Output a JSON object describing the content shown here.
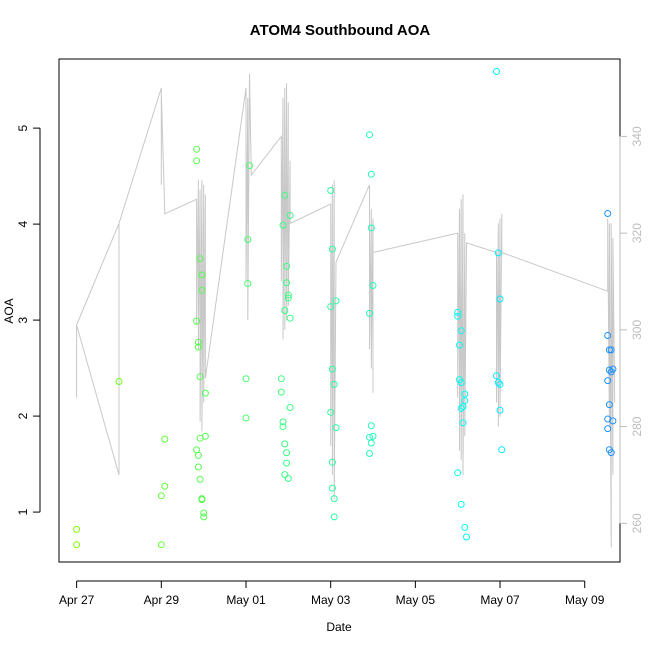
{
  "chart_data": {
    "type": "scatter",
    "title": "ATOM4 Southbound AOA",
    "xlabel": "Date",
    "ylabel": "AOA",
    "x_ticks": [
      "Apr 27",
      "Apr 29",
      "May 01",
      "May 03",
      "May 05",
      "May 07",
      "May 09"
    ],
    "y_ticks": [
      1,
      2,
      3,
      4,
      5
    ],
    "y2_ticks": [
      260,
      280,
      300,
      320,
      340
    ],
    "xlim": [
      "2016-04-26T14:00",
      "2016-05-09T20:00"
    ],
    "ylim": [
      0.48,
      5.72
    ],
    "y2lim": [
      252,
      356
    ],
    "grid": false,
    "point_color_gradient": [
      "#7CFC00",
      "#00FFFF",
      "#1E90FF"
    ],
    "line_color": "#c8c8c8",
    "series": [
      {
        "values": [
          {
            "x": "2016-04-27T00:00",
            "y": 0.66
          },
          {
            "x": "2016-04-27T00:00",
            "y": 0.82
          },
          {
            "x": "2016-04-28T00:00",
            "y": 2.36
          },
          {
            "x": "2016-04-29T00:00",
            "y": 0.66
          },
          {
            "x": "2016-04-29T00:00",
            "y": 1.17
          },
          {
            "x": "2016-04-29T02:00",
            "y": 1.27
          },
          {
            "x": "2016-04-29T02:00",
            "y": 1.76
          },
          {
            "x": "2016-04-29T20:00",
            "y": 1.65
          },
          {
            "x": "2016-04-29T20:00",
            "y": 4.78
          },
          {
            "x": "2016-04-29T20:00",
            "y": 4.66
          },
          {
            "x": "2016-04-29T20:00",
            "y": 2.99
          },
          {
            "x": "2016-04-29T21:00",
            "y": 2.77
          },
          {
            "x": "2016-04-29T21:00",
            "y": 2.72
          },
          {
            "x": "2016-04-29T21:00",
            "y": 1.47
          },
          {
            "x": "2016-04-29T21:00",
            "y": 1.59
          },
          {
            "x": "2016-04-29T22:00",
            "y": 1.34
          },
          {
            "x": "2016-04-29T22:00",
            "y": 3.64
          },
          {
            "x": "2016-04-29T22:00",
            "y": 2.41
          },
          {
            "x": "2016-04-29T22:00",
            "y": 1.77
          },
          {
            "x": "2016-04-29T23:00",
            "y": 3.47
          },
          {
            "x": "2016-04-29T23:00",
            "y": 3.31
          },
          {
            "x": "2016-04-29T23:00",
            "y": 1.13
          },
          {
            "x": "2016-04-29T23:00",
            "y": 1.14
          },
          {
            "x": "2016-04-30T00:00",
            "y": 0.99
          },
          {
            "x": "2016-04-30T00:00",
            "y": 0.95
          },
          {
            "x": "2016-04-30T01:00",
            "y": 1.79
          },
          {
            "x": "2016-04-30T01:00",
            "y": 2.24
          },
          {
            "x": "2016-05-01T00:00",
            "y": 1.98
          },
          {
            "x": "2016-05-01T00:00",
            "y": 2.39
          },
          {
            "x": "2016-05-01T01:00",
            "y": 3.38
          },
          {
            "x": "2016-05-01T01:00",
            "y": 3.84
          },
          {
            "x": "2016-05-01T02:00",
            "y": 4.61
          },
          {
            "x": "2016-05-01T20:00",
            "y": 2.25
          },
          {
            "x": "2016-05-01T20:00",
            "y": 2.39
          },
          {
            "x": "2016-05-01T21:00",
            "y": 1.89
          },
          {
            "x": "2016-05-01T21:00",
            "y": 1.94
          },
          {
            "x": "2016-05-01T21:00",
            "y": 3.99
          },
          {
            "x": "2016-05-01T22:00",
            "y": 4.3
          },
          {
            "x": "2016-05-01T22:00",
            "y": 3.1
          },
          {
            "x": "2016-05-01T22:00",
            "y": 1.71
          },
          {
            "x": "2016-05-01T22:00",
            "y": 1.39
          },
          {
            "x": "2016-05-01T23:00",
            "y": 3.56
          },
          {
            "x": "2016-05-01T23:00",
            "y": 3.39
          },
          {
            "x": "2016-05-01T23:00",
            "y": 1.62
          },
          {
            "x": "2016-05-01T23:00",
            "y": 1.51
          },
          {
            "x": "2016-05-02T00:00",
            "y": 3.23
          },
          {
            "x": "2016-05-02T00:00",
            "y": 3.26
          },
          {
            "x": "2016-05-02T00:00",
            "y": 1.35
          },
          {
            "x": "2016-05-02T01:00",
            "y": 4.09
          },
          {
            "x": "2016-05-02T01:00",
            "y": 3.02
          },
          {
            "x": "2016-05-02T01:00",
            "y": 2.09
          },
          {
            "x": "2016-05-03T00:00",
            "y": 4.35
          },
          {
            "x": "2016-05-03T00:00",
            "y": 3.14
          },
          {
            "x": "2016-05-03T00:00",
            "y": 2.04
          },
          {
            "x": "2016-05-03T01:00",
            "y": 1.25
          },
          {
            "x": "2016-05-03T01:00",
            "y": 3.74
          },
          {
            "x": "2016-05-03T01:00",
            "y": 2.49
          },
          {
            "x": "2016-05-03T01:00",
            "y": 1.52
          },
          {
            "x": "2016-05-03T02:00",
            "y": 2.33
          },
          {
            "x": "2016-05-03T02:00",
            "y": 0.95
          },
          {
            "x": "2016-05-03T02:00",
            "y": 1.14
          },
          {
            "x": "2016-05-03T03:00",
            "y": 3.2
          },
          {
            "x": "2016-05-03T03:00",
            "y": 1.88
          },
          {
            "x": "2016-05-03T22:00",
            "y": 4.93
          },
          {
            "x": "2016-05-03T22:00",
            "y": 3.07
          },
          {
            "x": "2016-05-03T22:00",
            "y": 1.78
          },
          {
            "x": "2016-05-03T22:00",
            "y": 1.61
          },
          {
            "x": "2016-05-03T23:00",
            "y": 4.52
          },
          {
            "x": "2016-05-03T23:00",
            "y": 3.96
          },
          {
            "x": "2016-05-03T23:00",
            "y": 1.9
          },
          {
            "x": "2016-05-03T23:00",
            "y": 1.72
          },
          {
            "x": "2016-05-04T00:00",
            "y": 3.36
          },
          {
            "x": "2016-05-04T00:00",
            "y": 1.79
          },
          {
            "x": "2016-05-06T00:00",
            "y": 3.08
          },
          {
            "x": "2016-05-06T00:00",
            "y": 3.04
          },
          {
            "x": "2016-05-06T00:00",
            "y": 1.41
          },
          {
            "x": "2016-05-06T01:00",
            "y": 2.74
          },
          {
            "x": "2016-05-06T01:00",
            "y": 2.38
          },
          {
            "x": "2016-05-06T02:00",
            "y": 2.89
          },
          {
            "x": "2016-05-06T02:00",
            "y": 2.35
          },
          {
            "x": "2016-05-06T02:00",
            "y": 2.08
          },
          {
            "x": "2016-05-06T02:00",
            "y": 1.08
          },
          {
            "x": "2016-05-06T03:00",
            "y": 1.93
          },
          {
            "x": "2016-05-06T03:00",
            "y": 2.1
          },
          {
            "x": "2016-05-06T04:00",
            "y": 2.23
          },
          {
            "x": "2016-05-06T04:00",
            "y": 2.16
          },
          {
            "x": "2016-05-06T04:00",
            "y": 0.84
          },
          {
            "x": "2016-05-06T05:00",
            "y": 0.74
          },
          {
            "x": "2016-05-06T22:00",
            "y": 5.59
          },
          {
            "x": "2016-05-06T22:00",
            "y": 2.42
          },
          {
            "x": "2016-05-06T23:00",
            "y": 3.7
          },
          {
            "x": "2016-05-06T23:00",
            "y": 2.35
          },
          {
            "x": "2016-05-07T00:00",
            "y": 3.22
          },
          {
            "x": "2016-05-07T00:00",
            "y": 2.06
          },
          {
            "x": "2016-05-07T00:00",
            "y": 2.33
          },
          {
            "x": "2016-05-07T01:00",
            "y": 1.65
          },
          {
            "x": "2016-05-09T13:00",
            "y": 4.11
          },
          {
            "x": "2016-05-09T13:00",
            "y": 2.84
          },
          {
            "x": "2016-05-09T13:00",
            "y": 2.37
          },
          {
            "x": "2016-05-09T13:00",
            "y": 1.97
          },
          {
            "x": "2016-05-09T13:00",
            "y": 1.87
          },
          {
            "x": "2016-05-09T14:00",
            "y": 2.69
          },
          {
            "x": "2016-05-09T14:00",
            "y": 2.48
          },
          {
            "x": "2016-05-09T14:00",
            "y": 2.12
          },
          {
            "x": "2016-05-09T14:00",
            "y": 1.65
          },
          {
            "x": "2016-05-09T15:00",
            "y": 2.69
          },
          {
            "x": "2016-05-09T15:00",
            "y": 2.46
          },
          {
            "x": "2016-05-09T15:00",
            "y": 1.62
          },
          {
            "x": "2016-05-09T16:00",
            "y": 2.49
          },
          {
            "x": "2016-05-09T16:00",
            "y": 1.95
          }
        ]
      },
      {
        "axis": "right",
        "style": "line",
        "values": [
          {
            "x": "2016-04-27T00:00",
            "y": 286
          },
          {
            "x": "2016-04-27T00:00",
            "y": 301
          },
          {
            "x": "2016-04-28T00:00",
            "y": 322
          },
          {
            "x": "2016-04-28T00:00",
            "y": 270
          },
          {
            "x": "2016-04-27T00:00",
            "y": 301
          },
          {
            "x": "2016-04-28T00:00",
            "y": 322
          },
          {
            "x": "2016-04-29T00:00",
            "y": 350
          },
          {
            "x": "2016-04-29T00:00",
            "y": 330
          },
          {
            "x": "2016-04-29T00:00",
            "y": 349
          },
          {
            "x": "2016-04-29T02:00",
            "y": 324
          },
          {
            "x": "2016-04-29T20:00",
            "y": 327
          },
          {
            "x": "2016-04-29T20:00",
            "y": 301
          },
          {
            "x": "2016-04-29T21:00",
            "y": 331
          },
          {
            "x": "2016-04-29T21:00",
            "y": 296
          },
          {
            "x": "2016-04-29T22:00",
            "y": 329
          },
          {
            "x": "2016-04-29T22:00",
            "y": 281
          },
          {
            "x": "2016-04-29T23:00",
            "y": 331
          },
          {
            "x": "2016-04-29T23:00",
            "y": 279
          },
          {
            "x": "2016-04-30T00:00",
            "y": 330
          },
          {
            "x": "2016-04-30T00:00",
            "y": 285
          },
          {
            "x": "2016-04-30T01:00",
            "y": 328
          },
          {
            "x": "2016-04-30T01:00",
            "y": 290
          },
          {
            "x": "2016-05-01T00:00",
            "y": 350
          },
          {
            "x": "2016-05-01T00:00",
            "y": 310
          },
          {
            "x": "2016-05-01T01:00",
            "y": 348
          },
          {
            "x": "2016-05-01T01:00",
            "y": 302
          },
          {
            "x": "2016-05-01T02:00",
            "y": 353
          },
          {
            "x": "2016-05-01T03:00",
            "y": 332
          },
          {
            "x": "2016-05-01T20:00",
            "y": 340
          },
          {
            "x": "2016-05-01T20:00",
            "y": 310
          },
          {
            "x": "2016-05-01T21:00",
            "y": 348
          },
          {
            "x": "2016-05-01T21:00",
            "y": 298
          },
          {
            "x": "2016-05-01T22:00",
            "y": 350
          },
          {
            "x": "2016-05-01T22:00",
            "y": 300
          },
          {
            "x": "2016-05-01T23:00",
            "y": 351
          },
          {
            "x": "2016-05-01T23:00",
            "y": 302
          },
          {
            "x": "2016-05-02T00:00",
            "y": 347
          },
          {
            "x": "2016-05-02T00:00",
            "y": 305
          },
          {
            "x": "2016-05-02T01:00",
            "y": 335
          },
          {
            "x": "2016-05-02T01:00",
            "y": 322
          },
          {
            "x": "2016-05-03T00:00",
            "y": 326
          },
          {
            "x": "2016-05-03T00:00",
            "y": 276
          },
          {
            "x": "2016-05-03T01:00",
            "y": 330
          },
          {
            "x": "2016-05-03T01:00",
            "y": 270
          },
          {
            "x": "2016-05-03T02:00",
            "y": 331
          },
          {
            "x": "2016-05-03T02:00",
            "y": 265
          },
          {
            "x": "2016-05-03T03:00",
            "y": 314
          },
          {
            "x": "2016-05-03T22:00",
            "y": 330
          },
          {
            "x": "2016-05-03T22:00",
            "y": 296
          },
          {
            "x": "2016-05-03T23:00",
            "y": 325
          },
          {
            "x": "2016-05-03T23:00",
            "y": 292
          },
          {
            "x": "2016-05-04T00:00",
            "y": 323
          },
          {
            "x": "2016-05-04T00:00",
            "y": 287
          },
          {
            "x": "2016-05-04T00:00",
            "y": 316
          },
          {
            "x": "2016-05-06T00:00",
            "y": 320
          },
          {
            "x": "2016-05-06T00:00",
            "y": 286
          },
          {
            "x": "2016-05-06T01:00",
            "y": 325
          },
          {
            "x": "2016-05-06T01:00",
            "y": 275
          },
          {
            "x": "2016-05-06T02:00",
            "y": 327
          },
          {
            "x": "2016-05-06T02:00",
            "y": 273
          },
          {
            "x": "2016-05-06T03:00",
            "y": 328
          },
          {
            "x": "2016-05-06T03:00",
            "y": 270
          },
          {
            "x": "2016-05-06T04:00",
            "y": 320
          },
          {
            "x": "2016-05-06T04:00",
            "y": 278
          },
          {
            "x": "2016-05-06T05:00",
            "y": 318
          },
          {
            "x": "2016-05-06T22:00",
            "y": 316
          },
          {
            "x": "2016-05-06T22:00",
            "y": 285
          },
          {
            "x": "2016-05-06T23:00",
            "y": 322
          },
          {
            "x": "2016-05-06T23:00",
            "y": 280
          },
          {
            "x": "2016-05-07T00:00",
            "y": 323
          },
          {
            "x": "2016-05-07T00:00",
            "y": 282
          },
          {
            "x": "2016-05-07T01:00",
            "y": 324
          },
          {
            "x": "2016-05-07T01:00",
            "y": 316
          },
          {
            "x": "2016-05-09T13:00",
            "y": 308
          },
          {
            "x": "2016-05-09T13:00",
            "y": 323
          },
          {
            "x": "2016-05-09T14:00",
            "y": 280
          },
          {
            "x": "2016-05-09T14:00",
            "y": 322
          },
          {
            "x": "2016-05-09T15:00",
            "y": 255
          },
          {
            "x": "2016-05-09T15:00",
            "y": 322
          },
          {
            "x": "2016-05-09T16:00",
            "y": 270
          },
          {
            "x": "2016-05-09T16:00",
            "y": 319
          },
          {
            "x": "2016-05-09T17:00",
            "y": 285
          }
        ]
      }
    ]
  }
}
